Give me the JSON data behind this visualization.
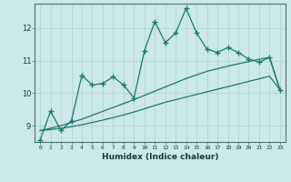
{
  "xlabel": "Humidex (Indice chaleur)",
  "ylabel": "",
  "bg_color": "#cce8e8",
  "line_color": "#1a7a6e",
  "grid_color": "#b8d8d0",
  "x_data": [
    0,
    1,
    2,
    3,
    4,
    5,
    6,
    7,
    8,
    9,
    10,
    11,
    12,
    13,
    14,
    15,
    16,
    17,
    18,
    19,
    20,
    21,
    22,
    23
  ],
  "y_main": [
    8.55,
    9.45,
    8.85,
    9.15,
    10.55,
    10.25,
    10.3,
    10.5,
    10.25,
    9.85,
    11.3,
    12.2,
    11.55,
    11.85,
    12.6,
    11.85,
    11.35,
    11.25,
    11.4,
    11.25,
    11.05,
    10.95,
    11.1,
    10.1
  ],
  "y_line1": [
    8.85,
    8.92,
    9.0,
    9.1,
    9.2,
    9.32,
    9.44,
    9.56,
    9.68,
    9.8,
    9.93,
    10.06,
    10.19,
    10.32,
    10.45,
    10.56,
    10.67,
    10.75,
    10.83,
    10.9,
    10.97,
    11.04,
    11.1,
    10.1
  ],
  "y_line2": [
    8.85,
    8.88,
    8.92,
    8.97,
    9.03,
    9.1,
    9.17,
    9.25,
    9.33,
    9.42,
    9.52,
    9.62,
    9.72,
    9.8,
    9.88,
    9.96,
    10.04,
    10.12,
    10.2,
    10.28,
    10.36,
    10.44,
    10.52,
    10.1
  ],
  "ylim": [
    8.5,
    12.75
  ],
  "xlim": [
    -0.5,
    23.5
  ],
  "yticks": [
    9,
    10,
    11,
    12
  ],
  "xticks": [
    0,
    1,
    2,
    3,
    4,
    5,
    6,
    7,
    8,
    9,
    10,
    11,
    12,
    13,
    14,
    15,
    16,
    17,
    18,
    19,
    20,
    21,
    22,
    23
  ],
  "xlabel_fontsize": 6.5,
  "ylabel_fontsize": 6,
  "xtick_fontsize": 4.5,
  "ytick_fontsize": 6
}
